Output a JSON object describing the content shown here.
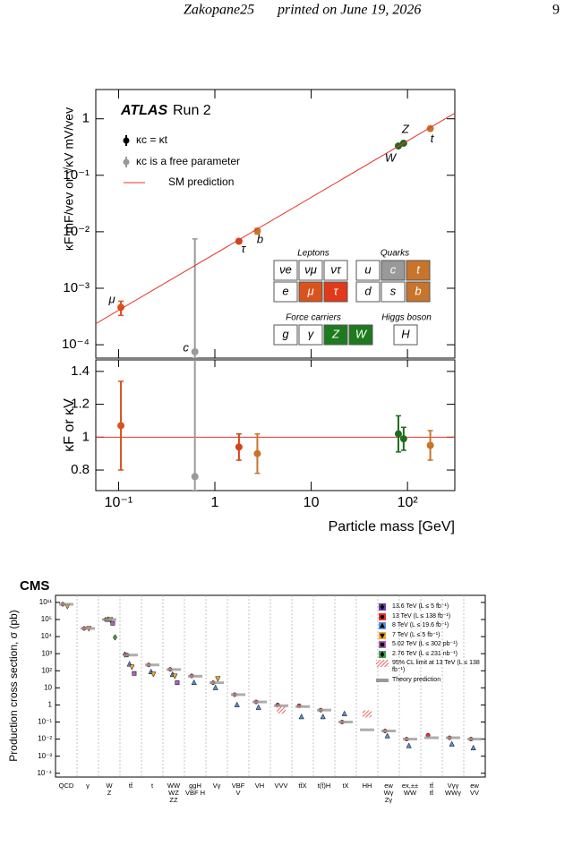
{
  "header": {
    "running_title": "Zakopane25",
    "print_note": "printed on June 19, 2026",
    "page_number": "9"
  },
  "chart_data": [
    {
      "type": "scatter",
      "experiment": "ATLAS",
      "label": "Run 2",
      "ylabel": "κF mF/vev or √κV mV/vev",
      "xscale": "log",
      "yscale": "log",
      "xlim": [
        0.058,
        310
      ],
      "ylim": [
        5.8e-05,
        3.3
      ],
      "yticks": [
        {
          "value": 0.0001,
          "label": "10⁻⁴"
        },
        {
          "value": 0.001,
          "label": "10⁻³"
        },
        {
          "value": 0.01,
          "label": "10⁻²"
        },
        {
          "value": 0.1,
          "label": "10⁻¹"
        },
        1
      ],
      "x": [
        0.1057,
        0.62,
        1.777,
        2.76,
        80.4,
        91.19,
        172.5
      ],
      "point_labels": [
        "μ",
        "c",
        "τ",
        "b",
        "W",
        "Z",
        "t"
      ],
      "point_colors": [
        "#d9531e",
        "#999999",
        "#d4421b",
        "#c8742b",
        "#1e6b1e",
        "#1e6b1e",
        "#c8742b"
      ],
      "series": [
        {
          "name": "κc = κt",
          "color": "#000000",
          "values": [
            0.00046,
            null,
            0.0068,
            0.0103,
            0.33,
            0.37,
            0.67
          ],
          "errors": [
            0.00013,
            null,
            0.0006,
            0.0012,
            0.02,
            0.02,
            0.05
          ]
        },
        {
          "name": "κc is a free parameter",
          "color": "#999999",
          "values": [
            null,
            7.5e-05,
            null,
            null,
            null,
            null,
            null
          ],
          "errors": [
            null,
            0.0074,
            null,
            null,
            null,
            null,
            null
          ]
        },
        {
          "name": "SM prediction",
          "color": "#e8332a",
          "type": "line",
          "x": [
            0.058,
            310
          ],
          "values": [
            0.000236,
            1.26
          ]
        }
      ]
    },
    {
      "type": "scatter",
      "ylabel": "κF or κV",
      "xlabel": "Particle mass [GeV]",
      "xscale": "log",
      "xlim": [
        0.058,
        310
      ],
      "xticks": [
        {
          "value": 0.1,
          "label": "10⁻¹"
        },
        1,
        10,
        {
          "value": 100,
          "label": "10²"
        }
      ],
      "ylim": [
        0.675,
        1.47
      ],
      "yticks": [
        0.8,
        1,
        1.2,
        1.4
      ],
      "x": [
        0.1057,
        0.62,
        1.777,
        2.76,
        80.4,
        91.19,
        172.5
      ],
      "point_colors": [
        "#d9531e",
        "#999999",
        "#d4421b",
        "#c8742b",
        "#1e6b1e",
        "#1e6b1e",
        "#c8742b"
      ],
      "reference_line": {
        "value": 1,
        "color": "#e8332a"
      },
      "series": [
        {
          "color": "#000000",
          "values": [
            1.07,
            null,
            0.94,
            0.9,
            1.02,
            0.99,
            0.95
          ],
          "errors": [
            0.27,
            null,
            0.08,
            0.12,
            0.11,
            0.07,
            0.09
          ]
        },
        {
          "color": "#999999",
          "values": [
            null,
            0.76,
            null,
            null,
            null,
            null,
            null
          ],
          "errors": [
            null,
            1.2,
            null,
            null,
            null,
            null,
            null
          ]
        }
      ]
    },
    {
      "type": "summary",
      "title": "CMS",
      "ylabel": "Production cross section, σ (pb)",
      "yscale": "log",
      "ylim": [
        6e-05,
        260000000000
      ],
      "axis_break": [
        100000,
        10000000000
      ],
      "yticks": [
        {
          "value": 0.0001,
          "label": "10⁻⁴"
        },
        {
          "value": 0.001,
          "label": "10⁻³"
        },
        {
          "value": 0.01,
          "label": "10⁻²"
        },
        {
          "value": 0.1,
          "label": "10⁻¹"
        },
        1,
        10,
        {
          "value": 100,
          "label": "10²"
        },
        {
          "value": 1000,
          "label": "10³"
        },
        {
          "value": 10000,
          "label": "10⁴"
        },
        {
          "value": 100000,
          "label": "10⁵"
        },
        {
          "value": 100000000000,
          "label": "10¹¹"
        }
      ],
      "categories": [
        [
          "QCD"
        ],
        [
          "γ"
        ],
        [
          "W",
          "Z"
        ],
        [
          "tt̄"
        ],
        [
          "t"
        ],
        [
          "WW",
          "WZ",
          "ZZ"
        ],
        [
          "ggH",
          "VBF H"
        ],
        [
          "Vγ"
        ],
        [
          "VBF",
          "V"
        ],
        [
          "VH"
        ],
        [
          "VVV"
        ],
        [
          "tt̄X"
        ],
        [
          "t(t̄)H"
        ],
        [
          "tX"
        ],
        [
          "HH"
        ],
        [
          "ew",
          "Wγ",
          "Zγ"
        ],
        [
          "ex,±±",
          "WW"
        ],
        [
          "tt̄",
          "tt̄"
        ],
        [
          "Vγγ",
          "WWγ"
        ],
        [
          "ew",
          "VV"
        ]
      ],
      "series": [
        {
          "name": "13.6 TeV (L ≤ 5 fb⁻¹)",
          "color": "#6a3fa0",
          "marker": "diamond",
          "values": [
            null,
            null,
            null,
            880,
            null,
            null,
            null,
            null,
            null,
            null,
            null,
            null,
            null,
            null,
            null,
            null,
            null,
            null,
            null,
            null
          ]
        },
        {
          "name": "13 TeV (L ≤ 138 fb⁻¹)",
          "color": "#e8332a",
          "marker": "circle",
          "values": [
            78000000000,
            30000,
            200000,
            830,
            220,
            120,
            50,
            20,
            4,
            1.5,
            1.0,
            0.9,
            0.5,
            0.1,
            null,
            0.03,
            0.01,
            0.017,
            0.012,
            0.01
          ]
        },
        {
          "name": "8 TeV (L ≤ 19.6 fb⁻¹)",
          "color": "#5b8fd6",
          "marker": "triangle-up",
          "values": [
            null,
            null,
            110000,
            240,
            85,
            60,
            20,
            10,
            1.0,
            0.7,
            null,
            0.2,
            0.2,
            0.3,
            null,
            0.015,
            0.004,
            null,
            0.005,
            0.003
          ]
        },
        {
          "name": "7 TeV (L ≤ 5 fb⁻¹)",
          "color": "#f5a623",
          "marker": "triangle-down",
          "values": [
            60000000000,
            30000,
            100000,
            170,
            65,
            50,
            null,
            35,
            null,
            null,
            null,
            null,
            null,
            null,
            null,
            null,
            null,
            null,
            null,
            null
          ]
        },
        {
          "name": "5.02 TeV (L ≤ 302 pb⁻¹)",
          "color": "#b05fc0",
          "marker": "square",
          "values": [
            null,
            null,
            60000,
            70,
            null,
            20,
            null,
            null,
            null,
            null,
            null,
            null,
            null,
            null,
            null,
            null,
            null,
            null,
            null,
            null
          ]
        },
        {
          "name": "2.76 TeV (L ≤ 231 nb⁻¹)",
          "color": "#3fa34d",
          "marker": "diamond",
          "values": [
            null,
            null,
            9000,
            null,
            null,
            null,
            null,
            null,
            null,
            null,
            null,
            null,
            null,
            null,
            null,
            null,
            null,
            null,
            null,
            null
          ]
        },
        {
          "name": "95% CL limit at 13 TeV (L ≤ 138 fb⁻¹)",
          "color": "#e8332a",
          "marker": "hatch",
          "values": [
            null,
            null,
            null,
            null,
            null,
            null,
            null,
            null,
            null,
            null,
            0.5,
            null,
            null,
            null,
            0.3,
            null,
            null,
            null,
            null,
            null
          ]
        },
        {
          "name": "Theory prediction",
          "color": "#999999",
          "marker": "bar",
          "values": [
            78000000000,
            30000,
            200000,
            830,
            220,
            118,
            48,
            20,
            4,
            1.5,
            0.9,
            0.8,
            0.5,
            0.1,
            0.035,
            0.03,
            0.01,
            0.012,
            0.012,
            0.01
          ]
        }
      ]
    }
  ],
  "particle_table": {
    "groups": [
      {
        "title": "Leptons",
        "rows": [
          [
            {
              "label": "νe",
              "color": "#ffffff"
            },
            {
              "label": "νμ",
              "color": "#ffffff"
            },
            {
              "label": "ντ",
              "color": "#ffffff"
            }
          ],
          [
            {
              "label": "e",
              "color": "#ffffff"
            },
            {
              "label": "μ",
              "color": "#d9531e"
            },
            {
              "label": "τ",
              "color": "#e03a1a"
            }
          ]
        ]
      },
      {
        "title": "Quarks",
        "rows": [
          [
            {
              "label": "u",
              "color": "#ffffff"
            },
            {
              "label": "c",
              "color": "#999999"
            },
            {
              "label": "t",
              "color": "#c8742b"
            }
          ],
          [
            {
              "label": "d",
              "color": "#ffffff"
            },
            {
              "label": "s",
              "color": "#ffffff"
            },
            {
              "label": "b",
              "color": "#c8742b"
            }
          ]
        ]
      },
      {
        "title": "Force carriers",
        "rows": [
          [
            {
              "label": "g",
              "color": "#ffffff"
            },
            {
              "label": "γ",
              "color": "#ffffff"
            },
            {
              "label": "Z",
              "color": "#1e7a1e"
            },
            {
              "label": "W",
              "color": "#1e7a1e"
            }
          ]
        ]
      },
      {
        "title": "Higgs boson",
        "rows": [
          [
            {
              "label": "H",
              "color": "#ffffff"
            }
          ]
        ]
      }
    ]
  }
}
